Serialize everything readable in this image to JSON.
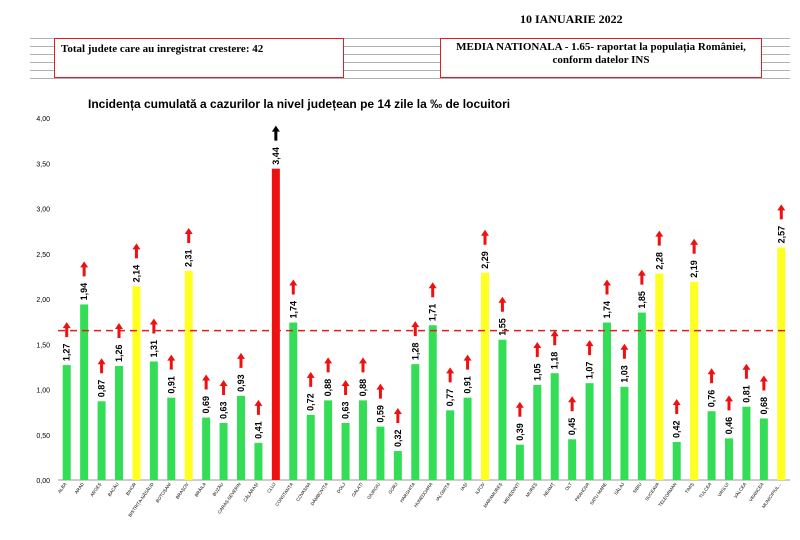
{
  "header": {
    "date": "10 IANUARIE 2022",
    "box_left": "Total judete care au inregistrat crestere: 42",
    "box_right_line1": "MEDIA NATIONALA - 1.65-  raportat la populația României,",
    "box_right_line2": "conform datelor INS"
  },
  "colors": {
    "green": "#33dd55",
    "yellow": "#ffff22",
    "red": "#ee1111",
    "arrow": "#ee1111",
    "reference_line": "#e02020"
  },
  "chart_data": {
    "type": "bar",
    "title": "Incidența cumulată a cazurilor la nivel județean pe 14 zile la ‰ de locuitori",
    "xlabel": "",
    "ylabel": "",
    "ylim": [
      0,
      4
    ],
    "yticks": [
      "0,00",
      "0,50",
      "1,00",
      "1,50",
      "2,00",
      "2,50",
      "3,00",
      "3,50",
      "4,00"
    ],
    "reference_line": 1.65,
    "categories": [
      "ALBA",
      "ARAD",
      "ARGEȘ",
      "BACĂU",
      "BIHOR",
      "BISTRIȚA-NĂSĂUD",
      "BOTOȘANI",
      "BRAȘOV",
      "BRĂILA",
      "BUZĂU",
      "CARAȘ-SEVERIN",
      "CĂLĂRAȘI",
      "CLUJ",
      "CONSTANȚA",
      "COVASNA",
      "DÂMBOVIȚA",
      "DOLJ",
      "GALAȚI",
      "GIURGIU",
      "GORJ",
      "HARGHITA",
      "HUNEDOARA",
      "IALOMIȚA",
      "IAȘI",
      "ILFOV",
      "MARAMUREȘ",
      "MEHEDINȚI",
      "MUREȘ",
      "NEAMȚ",
      "OLT",
      "PRAHOVA",
      "SATU MARE",
      "SĂLAJ",
      "SIBIU",
      "SUCEAVA",
      "TELEORMAN",
      "TIMIȘ",
      "TULCEA",
      "VASLUI",
      "VÂLCEA",
      "VRANCEA",
      "MUNICIPIUL..."
    ],
    "values": [
      1.27,
      1.94,
      0.87,
      1.26,
      2.14,
      1.31,
      0.91,
      2.31,
      0.69,
      0.63,
      0.93,
      0.41,
      3.44,
      1.74,
      0.72,
      0.88,
      0.63,
      0.88,
      0.59,
      0.32,
      1.28,
      1.71,
      0.77,
      0.91,
      2.29,
      1.55,
      0.39,
      1.05,
      1.18,
      0.45,
      1.07,
      1.74,
      1.03,
      1.85,
      2.28,
      0.42,
      2.19,
      0.76,
      0.46,
      0.81,
      0.68,
      2.57
    ],
    "value_labels": [
      "1,27",
      "1,94",
      "0,87",
      "1,26",
      "2,14",
      "1,31",
      "0,91",
      "2,31",
      "0,69",
      "0,63",
      "0,93",
      "0,41",
      "3,44",
      "1,74",
      "0,72",
      "0,88",
      "0,63",
      "0,88",
      "0,59",
      "0,32",
      "1,28",
      "1,71",
      "0,77",
      "0,91",
      "2,29",
      "1,55",
      "0,39",
      "1,05",
      "1,18",
      "0,45",
      "1,07",
      "1,74",
      "1,03",
      "1,85",
      "2,28",
      "0,42",
      "2,19",
      "0,76",
      "0,46",
      "0,81",
      "0,68",
      "2,57"
    ],
    "bar_colors": [
      "green",
      "green",
      "green",
      "green",
      "yellow",
      "green",
      "green",
      "yellow",
      "green",
      "green",
      "green",
      "green",
      "red",
      "green",
      "green",
      "green",
      "green",
      "green",
      "green",
      "green",
      "green",
      "green",
      "green",
      "green",
      "yellow",
      "green",
      "green",
      "green",
      "green",
      "green",
      "green",
      "green",
      "green",
      "green",
      "yellow",
      "green",
      "yellow",
      "green",
      "green",
      "green",
      "green",
      "yellow"
    ],
    "trend_arrows": [
      "up",
      "up",
      "up",
      "up",
      "up",
      "up",
      "up",
      "up",
      "up",
      "up",
      "up",
      "up",
      "up",
      "up",
      "up",
      "up",
      "up",
      "up",
      "up",
      "up",
      "up",
      "up",
      "up",
      "up",
      "up",
      "up",
      "up",
      "up",
      "up",
      "up",
      "up",
      "up",
      "up",
      "up",
      "up",
      "up",
      "up",
      "up",
      "up",
      "up",
      "up",
      "up"
    ],
    "grid": false,
    "legend": "none"
  }
}
